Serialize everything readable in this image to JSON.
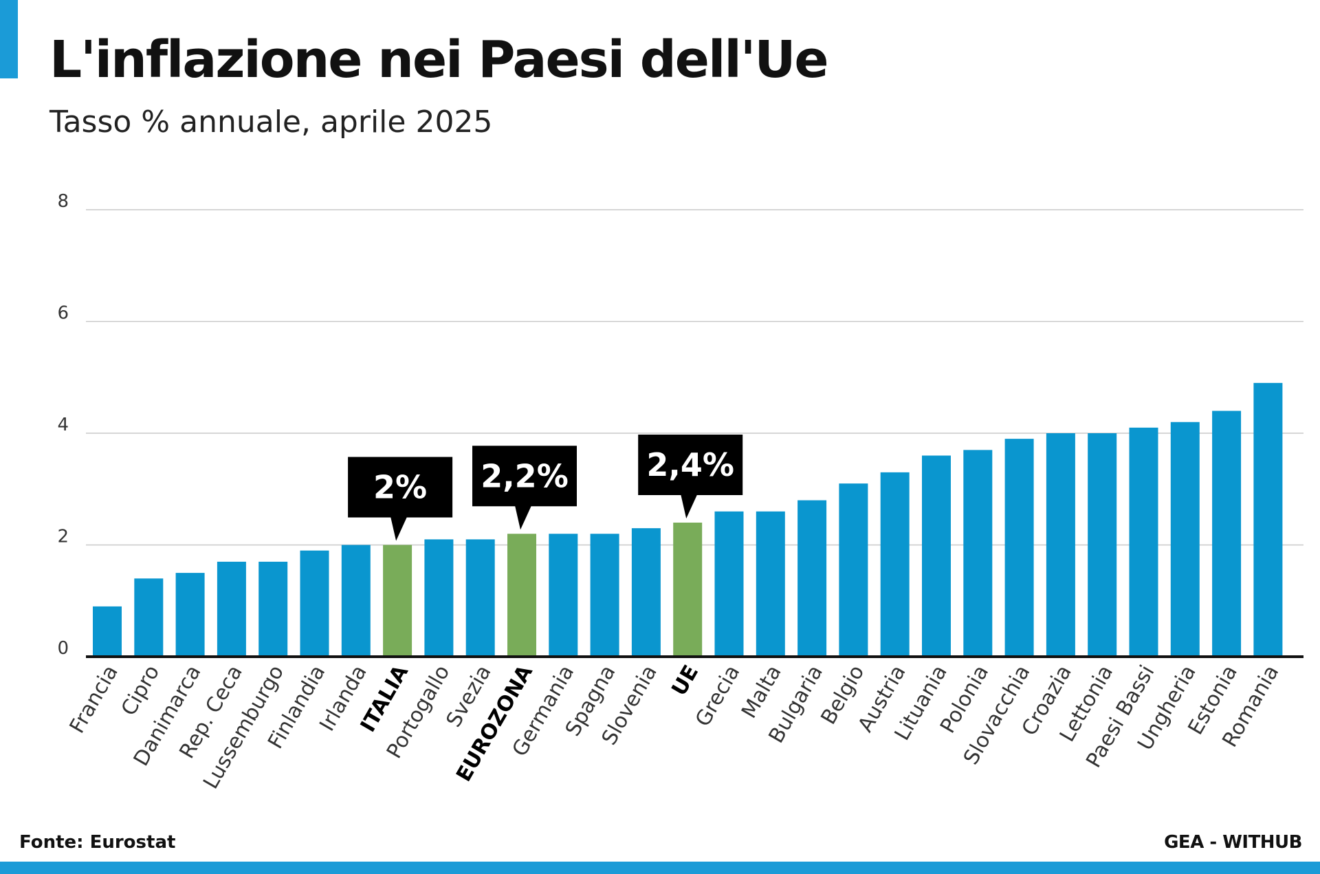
{
  "header": {
    "title": "L'inflazione nei Paesi dell'Ue",
    "subtitle": "Tasso % annuale, aprile 2025"
  },
  "footer": {
    "source": "Fonte: Eurostat",
    "credit": "GEA - WITHUB"
  },
  "colors": {
    "accent": "#1b9bd7",
    "bar": "#0a96cf",
    "highlight_bar": "#79ac59",
    "callout_bg": "#000000",
    "callout_text": "#ffffff",
    "gridline": "#c8c8c8"
  },
  "chart_data": {
    "type": "bar",
    "title": "L'inflazione nei Paesi dell'Ue",
    "subtitle": "Tasso % annuale, aprile 2025",
    "xlabel": "",
    "ylabel": "",
    "ylim": [
      0,
      8
    ],
    "yticks": [
      0,
      2,
      4,
      6,
      8
    ],
    "grid": true,
    "categories": [
      "Francia",
      "Cipro",
      "Danimarca",
      "Rep. Ceca",
      "Lussemburgo",
      "Finlandia",
      "Irlanda",
      "ITALIA",
      "Portogallo",
      "Svezia",
      "EUROZONA",
      "Germania",
      "Spagna",
      "Slovenia",
      "UE",
      "Grecia",
      "Malta",
      "Bulgaria",
      "Belgio",
      "Austria",
      "Lituania",
      "Polonia",
      "Slovacchia",
      "Croazia",
      "Lettonia",
      "Paesi Bassi",
      "Ungheria",
      "Estonia",
      "Romania"
    ],
    "values": [
      0.9,
      1.4,
      1.5,
      1.7,
      1.7,
      1.9,
      2.0,
      2.0,
      2.1,
      2.1,
      2.2,
      2.2,
      2.2,
      2.3,
      2.4,
      2.6,
      2.6,
      2.8,
      3.1,
      3.3,
      3.6,
      3.7,
      3.9,
      4.0,
      4.0,
      4.1,
      4.2,
      4.4,
      4.9
    ],
    "highlighted": [
      "ITALIA",
      "EUROZONA",
      "UE"
    ],
    "annotations": [
      {
        "category": "ITALIA",
        "text": "2%"
      },
      {
        "category": "EUROZONA",
        "text": "2,2%"
      },
      {
        "category": "UE",
        "text": "2,4%"
      }
    ]
  }
}
